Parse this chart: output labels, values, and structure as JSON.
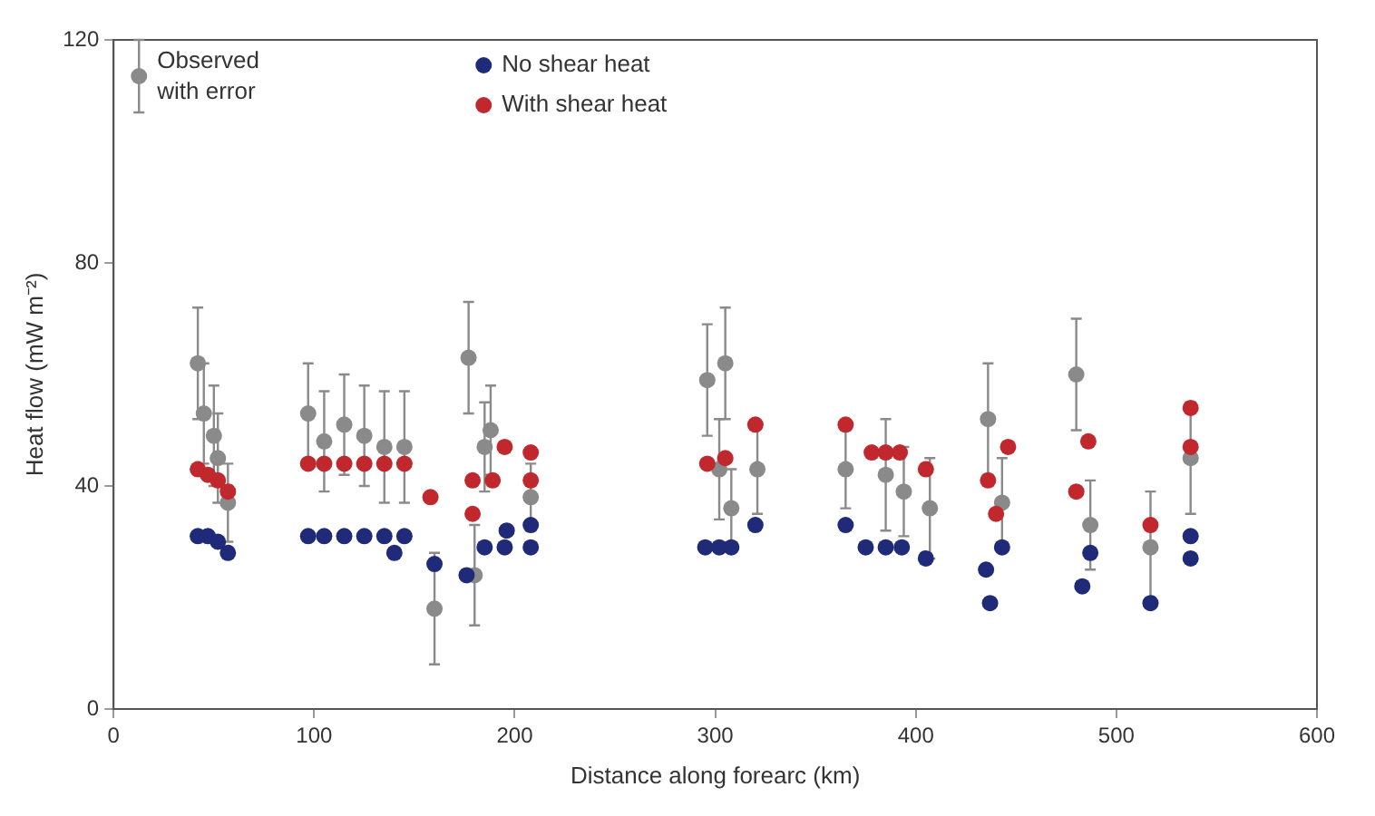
{
  "chart_data": {
    "type": "scatter",
    "xlabel": "Distance along forearc (km)",
    "ylabel": "Heat flow (mW m⁻²)",
    "xlim": [
      0,
      600
    ],
    "xticks": [
      0,
      100,
      200,
      300,
      400,
      500,
      600
    ],
    "ylim": [
      0,
      120
    ],
    "yticks": [
      0,
      40,
      80,
      120
    ],
    "grid": false,
    "legend": "top left",
    "marker": "circle",
    "series": [
      {
        "name": "Observed with error",
        "color": "#8a8a8a",
        "x": [
          42,
          45,
          50,
          52,
          57,
          97,
          105,
          115,
          125,
          135,
          145,
          160,
          177,
          180,
          185,
          188,
          208,
          296,
          302,
          305,
          308,
          321,
          365,
          385,
          394,
          407,
          436,
          443,
          480,
          487,
          517,
          537
        ],
        "values": [
          62,
          53,
          49,
          45,
          37,
          53,
          48,
          51,
          49,
          47,
          47,
          18,
          63,
          24,
          47,
          50,
          38,
          59,
          43,
          62,
          36,
          43,
          43,
          42,
          39,
          36,
          52,
          37,
          60,
          33,
          29,
          45
        ],
        "errors": [
          10,
          9,
          9,
          8,
          7,
          9,
          9,
          9,
          9,
          10,
          10,
          10,
          10,
          9,
          8,
          8,
          6,
          10,
          9,
          10,
          7,
          8,
          7,
          10,
          8,
          9,
          10,
          8,
          10,
          8,
          10,
          10
        ]
      },
      {
        "name": "No shear heat",
        "color": "#1f2a78",
        "x": [
          42,
          47,
          52,
          57,
          97,
          105,
          115,
          125,
          135,
          145,
          140,
          160,
          176,
          185,
          195,
          196,
          208,
          208,
          295,
          302,
          308,
          320,
          365,
          375,
          385,
          393,
          405,
          435,
          437,
          443,
          483,
          487,
          517,
          537,
          537
        ],
        "values": [
          31,
          31,
          30,
          28,
          31,
          31,
          31,
          31,
          31,
          31,
          28,
          26,
          24,
          29,
          29,
          32,
          29,
          33,
          29,
          29,
          29,
          33,
          33,
          29,
          29,
          29,
          27,
          25,
          19,
          29,
          22,
          28,
          19,
          31,
          27
        ]
      },
      {
        "name": "With shear heat",
        "color": "#c0282e",
        "x": [
          42,
          47,
          52,
          57,
          97,
          105,
          115,
          125,
          135,
          145,
          158,
          179,
          179,
          189,
          195,
          208,
          208,
          296,
          305,
          320,
          365,
          378,
          385,
          392,
          405,
          436,
          440,
          446,
          480,
          486,
          517,
          537,
          537
        ],
        "values": [
          43,
          42,
          41,
          39,
          44,
          44,
          44,
          44,
          44,
          44,
          38,
          41,
          35,
          41,
          47,
          46,
          41,
          44,
          45,
          51,
          51,
          46,
          46,
          46,
          43,
          41,
          35,
          47,
          39,
          48,
          33,
          54,
          47
        ]
      }
    ]
  }
}
